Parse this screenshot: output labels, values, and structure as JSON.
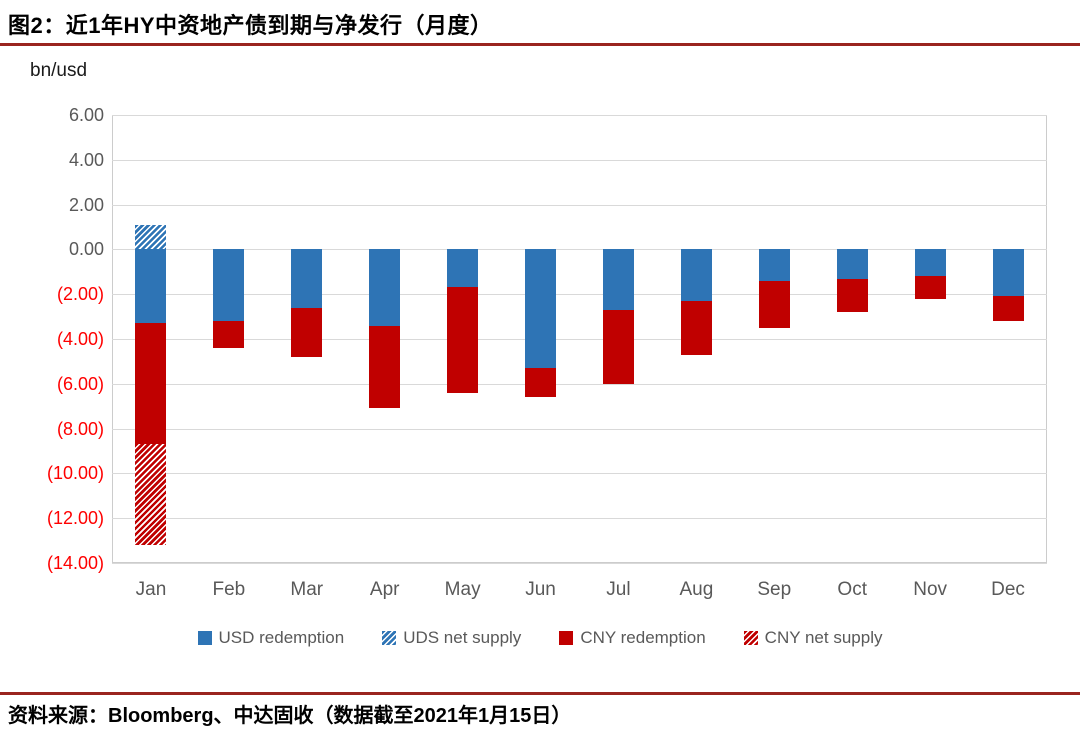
{
  "header": {
    "title": "图2：近1年HY中资地产债到期与净发行（月度）",
    "unit_label": "bn/usd"
  },
  "footer": {
    "source": "资料来源：Bloomberg、中达固收（数据截至2021年1月15日）"
  },
  "colors": {
    "usd_blue": "#2E74B5",
    "cny_red": "#C00000",
    "negative_tick_red": "#FF0000",
    "axis_text_gray": "#595959",
    "gridline_gray": "#D9D9D9",
    "divider_dark_red": "#9A241F"
  },
  "chart_data": {
    "type": "bar",
    "stacked": true,
    "title": "近1年HY中资地产债到期与净发行（月度）",
    "ylabel": "bn/usd",
    "xlabel": "",
    "ylim": [
      -14,
      6
    ],
    "grid": true,
    "legend_position": "bottom",
    "y_ticks": [
      {
        "value": 6,
        "label": "6.00"
      },
      {
        "value": 4,
        "label": "4.00"
      },
      {
        "value": 2,
        "label": "2.00"
      },
      {
        "value": 0,
        "label": "0.00"
      },
      {
        "value": -2,
        "label": "(2.00)"
      },
      {
        "value": -4,
        "label": "(4.00)"
      },
      {
        "value": -6,
        "label": "(6.00)"
      },
      {
        "value": -8,
        "label": "(8.00)"
      },
      {
        "value": -10,
        "label": "(10.00)"
      },
      {
        "value": -12,
        "label": "(12.00)"
      },
      {
        "value": -14,
        "label": "(14.00)"
      }
    ],
    "categories": [
      "Jan",
      "Feb",
      "Mar",
      "Apr",
      "May",
      "Jun",
      "Jul",
      "Aug",
      "Sep",
      "Oct",
      "Nov",
      "Dec"
    ],
    "series": [
      {
        "name": "USD redemption",
        "color": "#2E74B5",
        "hatch": false,
        "values": [
          -3.3,
          -3.2,
          -2.6,
          -3.4,
          -1.7,
          -5.3,
          -2.7,
          -2.3,
          -1.4,
          -1.3,
          -1.2,
          -2.1
        ]
      },
      {
        "name": "UDS net supply",
        "color": "#2E74B5",
        "hatch": true,
        "values": [
          1.1,
          0,
          0,
          0,
          0,
          0,
          0,
          0,
          0,
          0,
          0,
          0
        ]
      },
      {
        "name": "CNY redemption",
        "color": "#C00000",
        "hatch": false,
        "values": [
          -5.4,
          -1.2,
          -2.2,
          -3.7,
          -4.7,
          -1.3,
          -3.3,
          -2.4,
          -2.1,
          -1.5,
          -1.0,
          -1.1
        ]
      },
      {
        "name": "CNY net supply",
        "color": "#C00000",
        "hatch": true,
        "values": [
          -4.5,
          0,
          0,
          0,
          0,
          0,
          0,
          0,
          0,
          0,
          0,
          0
        ]
      }
    ]
  }
}
